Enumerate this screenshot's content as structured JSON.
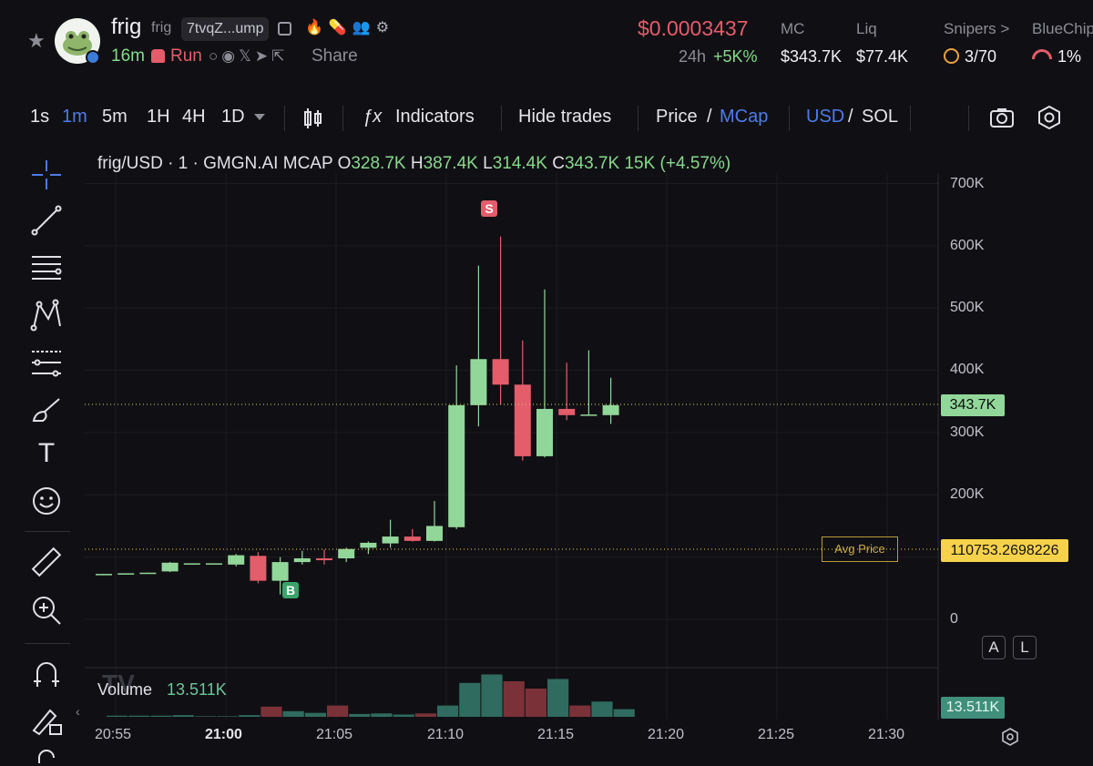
{
  "token": {
    "name": "frig",
    "symbol": "frig",
    "address_short": "7tvqZ...ump",
    "age": "16m",
    "run_label": "Run",
    "share_label": "Share"
  },
  "price": {
    "usd": "$0.0003437",
    "change_label": "24h",
    "change_value": "+5K%"
  },
  "stats": [
    {
      "label": "MC",
      "value": "$343.7K"
    },
    {
      "label": "Liq",
      "value": "$77.4K"
    },
    {
      "label": "Snipers >",
      "value": "3/70"
    },
    {
      "label": "BlueChip",
      "value": "1%"
    }
  ],
  "toolbar": {
    "intervals": [
      "1s",
      "1m",
      "5m",
      "1H",
      "4H",
      "1D"
    ],
    "active_interval": "1m",
    "indicators_label": "Indicators",
    "hide_trades_label": "Hide trades",
    "price_label": "Price",
    "mcap_label": "MCap",
    "usd_label": "USD",
    "sol_label": "SOL",
    "slash": "/"
  },
  "chart_header": {
    "pair": "frig/USD · 1 · GMGN.AI MCAP",
    "o_label": "O",
    "o_value": "328.7K",
    "h_label": "H",
    "h_value": "387.4K",
    "l_label": "L",
    "l_value": "314.4K",
    "c_label": "C",
    "c_value": "343.7K",
    "change": "15K (+4.57%)"
  },
  "chart_data": {
    "type": "candlestick",
    "y_unit": "market cap USD",
    "y_ticks": [
      "700K",
      "600K",
      "500K",
      "400K",
      "300K",
      "200K",
      "0"
    ],
    "x_ticks": [
      "20:55",
      "21:00",
      "21:05",
      "21:10",
      "21:15",
      "21:20",
      "21:25",
      "21:30"
    ],
    "last_price_label": "343.7K",
    "avg_price_label": "Avg Price",
    "avg_price_value": "110753.2698226",
    "volume_label": "Volume",
    "volume_value": "13.511K",
    "buy_marker": "B",
    "sell_marker": "S",
    "candles": [
      {
        "o": 72,
        "h": 73,
        "l": 71,
        "c": 73
      },
      {
        "o": 73,
        "h": 74,
        "l": 72,
        "c": 74
      },
      {
        "o": 74,
        "h": 75,
        "l": 73,
        "c": 75
      },
      {
        "o": 77,
        "h": 92,
        "l": 76,
        "c": 91
      },
      {
        "o": 89,
        "h": 90,
        "l": 88,
        "c": 90
      },
      {
        "o": 89,
        "h": 90,
        "l": 88,
        "c": 90
      },
      {
        "o": 88,
        "h": 105,
        "l": 85,
        "c": 103
      },
      {
        "o": 102,
        "h": 108,
        "l": 58,
        "c": 62
      },
      {
        "o": 62,
        "h": 100,
        "l": 40,
        "c": 92
      },
      {
        "o": 92,
        "h": 110,
        "l": 88,
        "c": 98
      },
      {
        "o": 98,
        "h": 112,
        "l": 88,
        "c": 95
      },
      {
        "o": 98,
        "h": 115,
        "l": 92,
        "c": 113
      },
      {
        "o": 115,
        "h": 125,
        "l": 105,
        "c": 123
      },
      {
        "o": 122,
        "h": 160,
        "l": 115,
        "c": 133
      },
      {
        "o": 133,
        "h": 145,
        "l": 125,
        "c": 126
      },
      {
        "o": 126,
        "h": 190,
        "l": 125,
        "c": 150
      },
      {
        "o": 148,
        "h": 408,
        "l": 145,
        "c": 344
      },
      {
        "o": 344,
        "h": 568,
        "l": 310,
        "c": 418
      },
      {
        "o": 418,
        "h": 615,
        "l": 345,
        "c": 377
      },
      {
        "o": 377,
        "h": 448,
        "l": 255,
        "c": 262
      },
      {
        "o": 262,
        "h": 530,
        "l": 260,
        "c": 338
      },
      {
        "o": 338,
        "h": 412,
        "l": 320,
        "c": 328
      },
      {
        "o": 329,
        "h": 432,
        "l": 328,
        "c": 329
      },
      {
        "o": 328,
        "h": 388,
        "l": 314,
        "c": 344
      }
    ],
    "volumes": [
      2,
      2,
      2,
      3,
      1,
      1,
      3,
      18,
      10,
      7,
      20,
      5,
      6,
      4,
      6,
      20,
      60,
      75,
      63,
      50,
      67,
      20,
      27,
      13.5
    ],
    "volume_up": [
      true,
      true,
      true,
      true,
      true,
      true,
      true,
      false,
      true,
      true,
      false,
      true,
      true,
      true,
      false,
      true,
      true,
      true,
      false,
      false,
      true,
      false,
      true,
      true
    ]
  },
  "colors": {
    "up": "#92d79a",
    "down": "#e35d6a",
    "accent": "#4f7be8",
    "avg": "#f6d24a"
  }
}
